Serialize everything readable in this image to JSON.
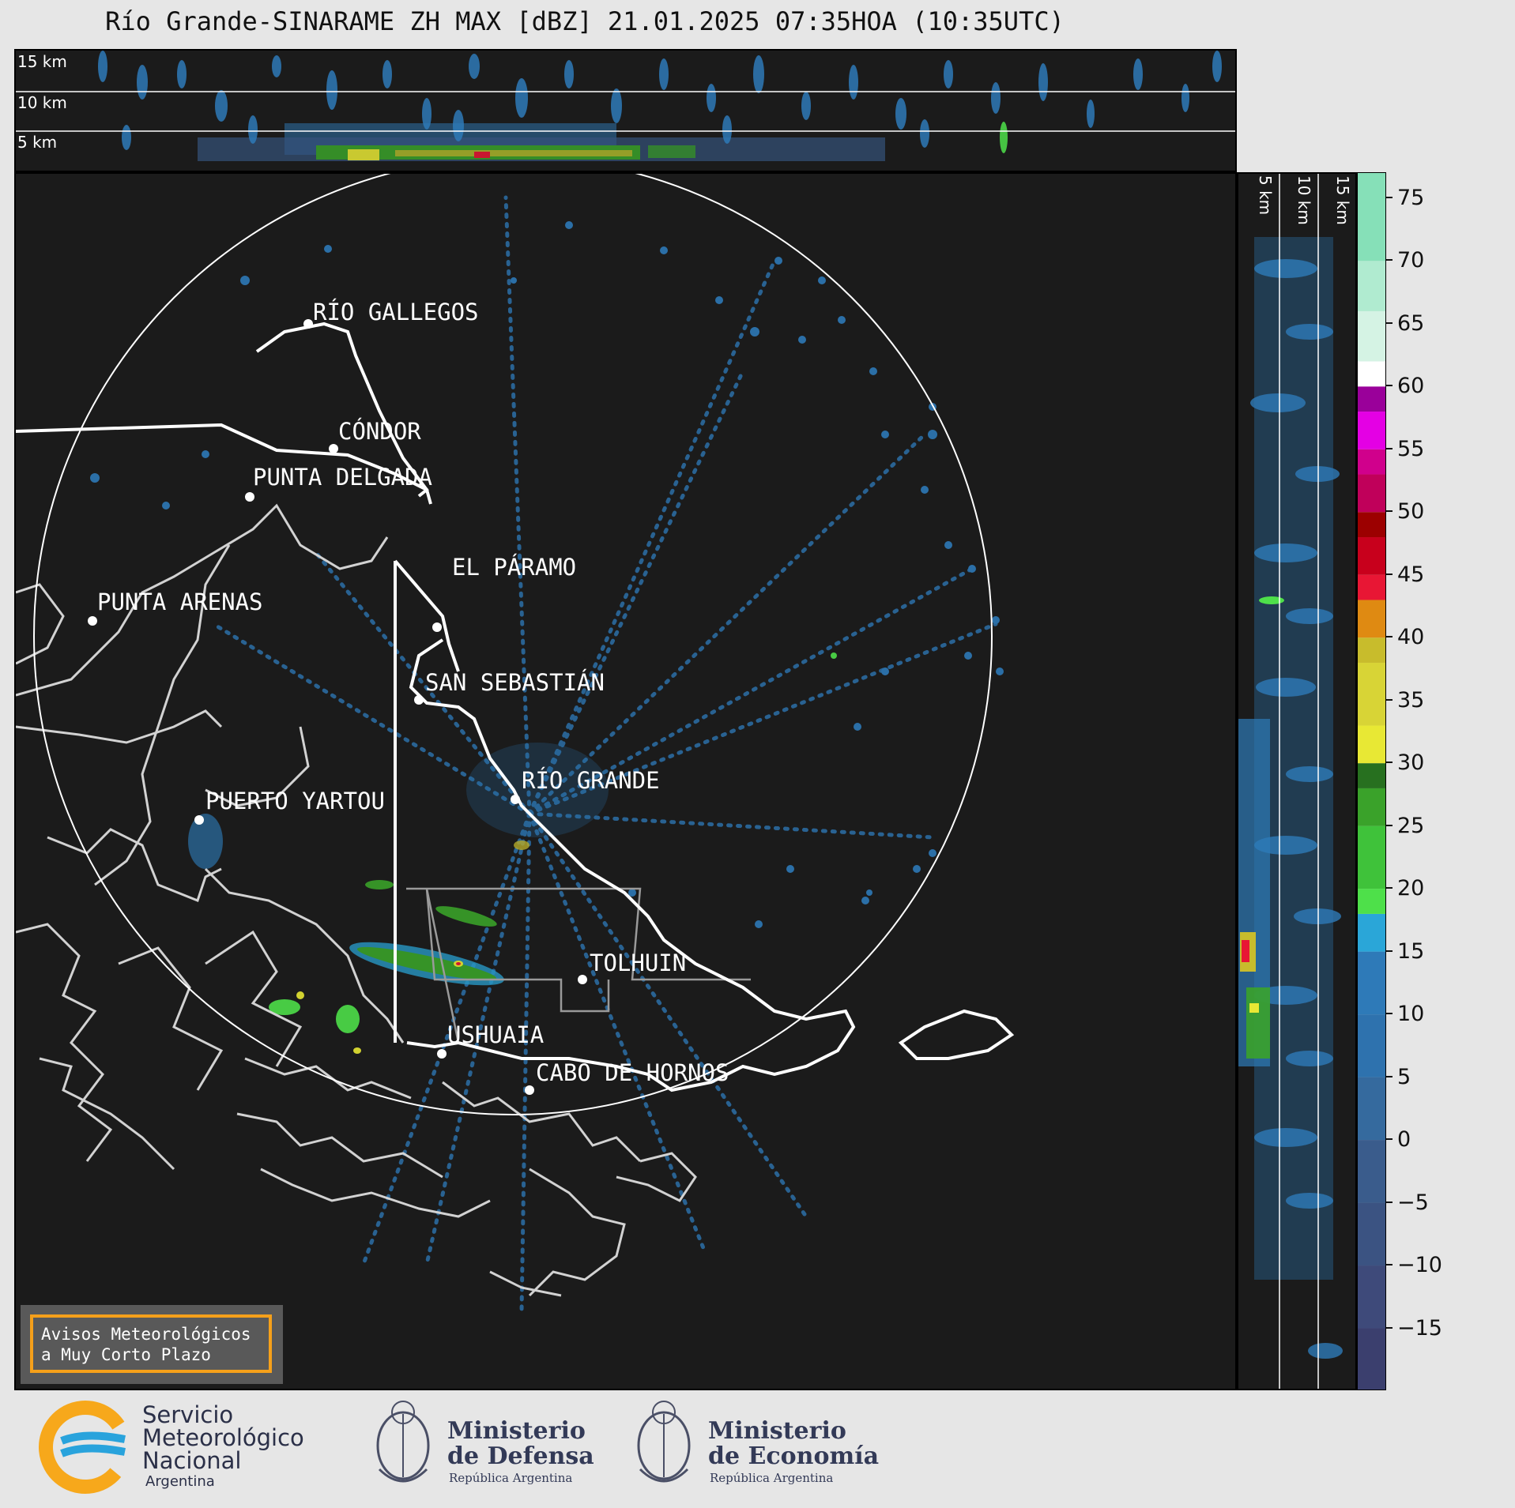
{
  "title": "Río Grande-SINARAME ZH MAX [dBZ] 21.01.2025 07:35HOA (10:35UTC)",
  "top_panel": {
    "alt_labels": [
      "15 km",
      "10 km",
      "5 km"
    ]
  },
  "right_panel": {
    "alt_labels": [
      "5 km",
      "10 km",
      "15 km"
    ]
  },
  "colorbar": {
    "unit": "dBZ",
    "ticks": [
      "75",
      "70",
      "65",
      "60",
      "55",
      "50",
      "45",
      "40",
      "35",
      "30",
      "25",
      "20",
      "15",
      "10",
      "5",
      "0",
      "−5",
      "−10",
      "−15"
    ],
    "range": [
      -20,
      77
    ],
    "colors": {
      "dark_low": "#3b3f6e",
      "blue_low": "#3a5c8c",
      "blue_mid": "#2e7ab8",
      "cyan": "#2aa6d8",
      "green_bright": "#4ee04a",
      "green_mid": "#3aa22a",
      "green_dark": "#27701f",
      "yellow": "#e8e834",
      "olive": "#c8bc2c",
      "orange": "#df8a12",
      "red": "#e81634",
      "dark_red": "#9c0000",
      "crimson": "#c0005a",
      "magenta": "#e400e4",
      "purple": "#9a009a",
      "white": "#ffffff",
      "mint_light": "#d5f3e4",
      "mint": "#86e0b8"
    }
  },
  "cities": [
    "RÍO GALLEGOS",
    "CÓNDOR",
    "PUNTA DELGADA",
    "EL PÁRAMO",
    "SAN SEBASTIÁN",
    "PUNTA ARENAS",
    "RÍO GRANDE",
    "PUERTO YARTOU",
    "TOLHUIN",
    "USHUAIA",
    "CABO DE HORNOS"
  ],
  "warning_box": {
    "line1": "Avisos Meteorológicos",
    "line2": "a Muy Corto Plazo"
  },
  "logos": {
    "smn": {
      "line1": "Servicio",
      "line2": "Meteorológico",
      "line3": "Nacional",
      "line4": "Argentina"
    },
    "defensa": {
      "line1": "Ministerio",
      "line2": "de Defensa",
      "sub": "República Argentina"
    },
    "economia": {
      "line1": "Ministerio",
      "line2": "de Economía",
      "sub": "República Argentina"
    }
  }
}
